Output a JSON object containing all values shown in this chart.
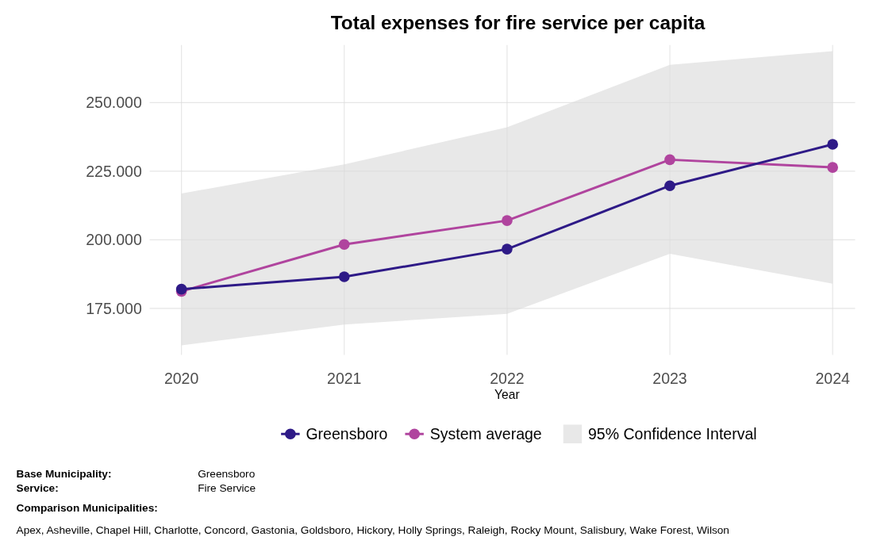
{
  "chart_data": {
    "type": "line",
    "title": "Total expenses for fire service per capita",
    "xlabel": "Year",
    "categories": [
      "2020",
      "2021",
      "2022",
      "2023",
      "2024"
    ],
    "series": [
      {
        "name": "Greensboro",
        "color": "#2e1a87",
        "values": [
          182.0,
          186.5,
          196.6,
          219.7,
          234.8
        ]
      },
      {
        "name": "System average",
        "color": "#b0449e",
        "values": [
          181.2,
          198.3,
          207.0,
          229.2,
          226.4
        ]
      },
      {
        "name": "95% Confidence Interval",
        "type": "area",
        "color": "#e8e8e8",
        "values": [
          null,
          null,
          null,
          null,
          null
        ],
        "lower": [
          161.5,
          169.1,
          173.0,
          194.9,
          184.0
        ],
        "upper": [
          216.9,
          227.5,
          241.0,
          263.8,
          268.8
        ]
      }
    ],
    "ylim": [
      158,
      271
    ],
    "yticks": [
      {
        "value": 175,
        "label": "175.000"
      },
      {
        "value": 200,
        "label": "200.000"
      },
      {
        "value": 225,
        "label": "225.000"
      },
      {
        "value": 250,
        "label": "250.000"
      }
    ],
    "grid": true,
    "legend": "bottom",
    "marker": "circle",
    "line_style": "solid",
    "annotations": [
      "Base Municipality:",
      "Greensboro",
      "Service:",
      "Fire Service",
      "Comparison Municipalities:",
      "Apex, Asheville, Chapel Hill, Charlotte, Concord, Gastonia, Goldsboro, Hickory, Holly Springs, Raleigh, Rocky Mount, Salisbury, Wake Forest, Wilson"
    ]
  }
}
